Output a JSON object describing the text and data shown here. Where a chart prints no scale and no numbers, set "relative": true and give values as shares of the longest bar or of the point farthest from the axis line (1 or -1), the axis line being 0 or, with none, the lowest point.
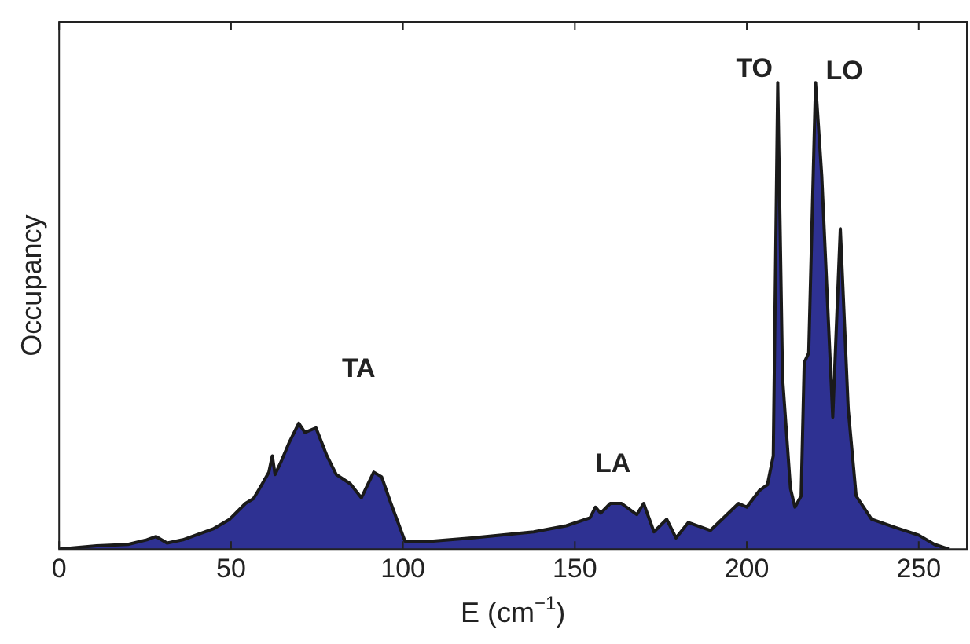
{
  "chart_data": {
    "type": "area",
    "relative": true,
    "xlabel": "E (cm$^{−1}$)",
    "ylabel": "Occupancy",
    "xlim": [
      0,
      264
    ],
    "xticks": [
      0,
      50,
      100,
      150,
      200,
      250
    ],
    "grid": false,
    "legend": false,
    "x": [
      0,
      10.9,
      20,
      25.5,
      28.2,
      31.4,
      36,
      45,
      49.6,
      54.2,
      56.5,
      58.3,
      61,
      62,
      62.8,
      64.7,
      67,
      69.7,
      71.5,
      74.7,
      77.9,
      80.6,
      84.7,
      87.9,
      91.5,
      93.8,
      96.5,
      100.6,
      108.8,
      120,
      138,
      147.5,
      154.4,
      156,
      157.5,
      160.3,
      163.5,
      168,
      170,
      173,
      176.7,
      179.4,
      183,
      189.4,
      197.6,
      200,
      203.6,
      206,
      207.7,
      209,
      210.4,
      212.7,
      214,
      215.8,
      216.7,
      218,
      220,
      221.8,
      225,
      227.2,
      229.5,
      231.8,
      236.3,
      243,
      250,
      254.6,
      258.7
    ],
    "series": [
      {
        "color": "#2e3192",
        "values": [
          0,
          0.007,
          0.01,
          0.02,
          0.027,
          0.013,
          0.02,
          0.044,
          0.064,
          0.098,
          0.108,
          0.13,
          0.165,
          0.2,
          0.16,
          0.19,
          0.23,
          0.27,
          0.25,
          0.26,
          0.2,
          0.16,
          0.14,
          0.11,
          0.165,
          0.155,
          0.098,
          0.017,
          0.017,
          0.024,
          0.037,
          0.05,
          0.067,
          0.09,
          0.077,
          0.098,
          0.098,
          0.074,
          0.098,
          0.037,
          0.064,
          0.024,
          0.057,
          0.04,
          0.098,
          0.09,
          0.125,
          0.138,
          0.2,
          1,
          0.367,
          0.13,
          0.09,
          0.114,
          0.4,
          0.42,
          1,
          0.8,
          0.283,
          0.687,
          0.3,
          0.114,
          0.064,
          0.047,
          0.03,
          0.01,
          0
        ]
      }
    ],
    "annotations": [
      "TA",
      "LA",
      "TO",
      "LO"
    ]
  }
}
